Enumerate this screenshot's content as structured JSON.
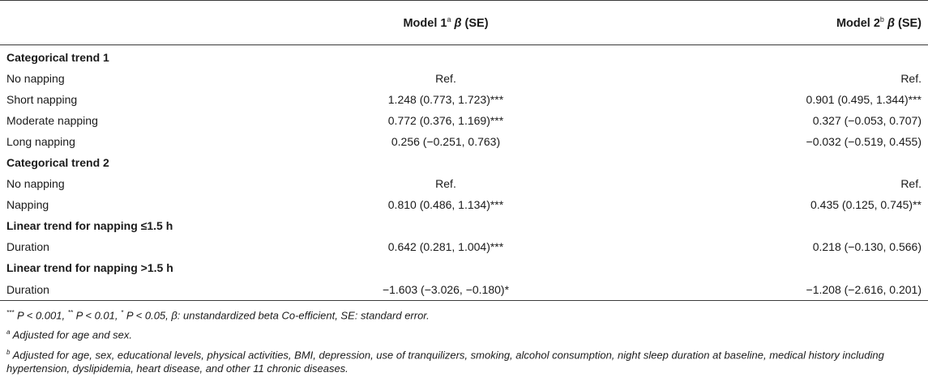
{
  "header": {
    "model1_label": "Model 1",
    "model1_sup": "a",
    "model1_beta": "β",
    "model1_se": "(SE)",
    "model2_label": "Model 2",
    "model2_sup": "b",
    "model2_beta": "β",
    "model2_se": "(SE)"
  },
  "rows": [
    {
      "label": "Categorical trend 1",
      "m1": "",
      "m2": ""
    },
    {
      "label": "No napping",
      "m1": "Ref.",
      "m2": "Ref."
    },
    {
      "label": "Short napping",
      "m1": "1.248 (0.773, 1.723)***",
      "m2": "0.901 (0.495, 1.344)***"
    },
    {
      "label": "Moderate napping",
      "m1": "0.772 (0.376, 1.169)***",
      "m2": "0.327 (−0.053, 0.707)"
    },
    {
      "label": "Long napping",
      "m1": "0.256 (−0.251, 0.763)",
      "m2": "−0.032 (−0.519, 0.455)"
    },
    {
      "label": "Categorical trend 2",
      "m1": "",
      "m2": ""
    },
    {
      "label": "No napping",
      "m1": "Ref.",
      "m2": "Ref."
    },
    {
      "label": "Napping",
      "m1": "0.810 (0.486, 1.134)***",
      "m2": "0.435 (0.125, 0.745)**"
    },
    {
      "label": "Linear trend for napping ≤1.5 h",
      "m1": "",
      "m2": ""
    },
    {
      "label": "Duration",
      "m1": "0.642 (0.281, 1.004)***",
      "m2": "0.218 (−0.130, 0.566)"
    },
    {
      "label": "Linear trend for napping >1.5 h",
      "m1": "",
      "m2": ""
    },
    {
      "label": "Duration",
      "m1": "−1.603 (−3.026, −0.180)*",
      "m2": "−1.208 (−2.616, 0.201)"
    }
  ],
  "notes": {
    "sig_sup1": "***",
    "sig_text1": " P < 0.001, ",
    "sig_sup2": "**",
    "sig_text2": " P < 0.01, ",
    "sig_sup3": "*",
    "sig_text3": " P < 0.05, β: unstandardized beta Co-efficient, SE: standard error.",
    "a_sup": "a",
    "a_text": " Adjusted for age and sex.",
    "b_sup": "b",
    "b_text": " Adjusted for age, sex, educational levels, physical activities, BMI, depression, use of tranquilizers, smoking, alcohol consumption, night sleep duration at baseline, medical history including hypertension, dyslipidemia, heart disease, and other 11 chronic diseases."
  }
}
